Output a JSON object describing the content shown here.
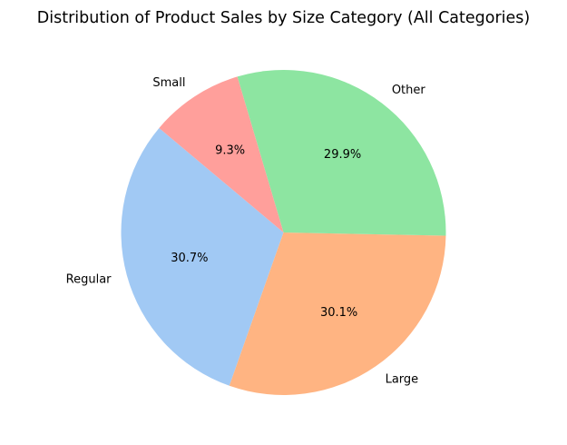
{
  "chart_data": {
    "type": "pie",
    "title": "Distribution of Product Sales by Size Category (All Categories)",
    "categories": [
      "Regular",
      "Large",
      "Other",
      "Small"
    ],
    "values": [
      30.7,
      30.1,
      29.9,
      9.3
    ],
    "percent_labels": [
      "30.7%",
      "30.1%",
      "29.9%",
      "9.3%"
    ],
    "colors": [
      "#a1c9f4",
      "#ffb482",
      "#8de5a1",
      "#ff9f9b"
    ],
    "start_angle_deg": 140,
    "direction": "counterclockwise",
    "legend": "none"
  }
}
